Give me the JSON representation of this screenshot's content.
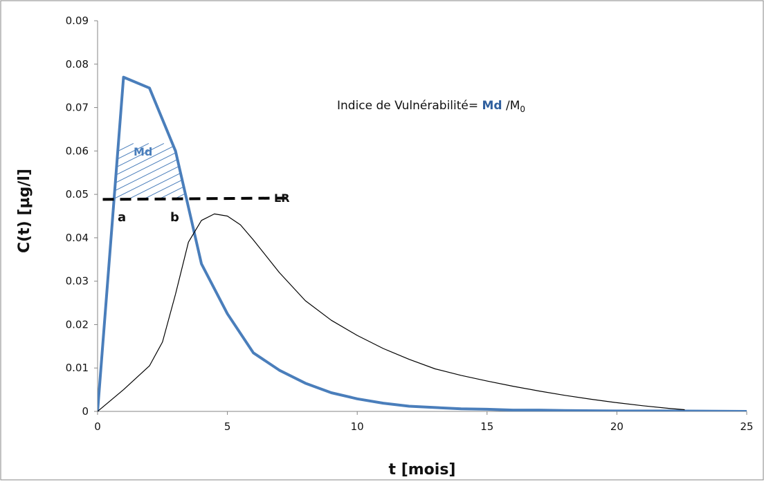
{
  "chart_data": {
    "type": "line",
    "xlabel": "t [mois]",
    "ylabel": "C(t) [µg/l]",
    "xlim": [
      0,
      25
    ],
    "ylim": [
      0,
      0.09
    ],
    "x_ticks": [
      "0",
      "5",
      "10",
      "15",
      "20",
      "25"
    ],
    "y_ticks": [
      "0",
      "0.01",
      "0.02",
      "0.03",
      "0.04",
      "0.05",
      "0.06",
      "0.07",
      "0.08",
      "0.09"
    ],
    "grid": false,
    "legend": "none",
    "series": [
      {
        "color": "#4a7ebb",
        "x": [
          0,
          1,
          2,
          3,
          4,
          5,
          6,
          7,
          8,
          9,
          10,
          11,
          12,
          13,
          14,
          15,
          16,
          17,
          18,
          20,
          22,
          25
        ],
        "y": [
          0,
          0.077,
          0.0745,
          0.06,
          0.034,
          0.0225,
          0.0135,
          0.0095,
          0.0065,
          0.0043,
          0.0029,
          0.0019,
          0.0012,
          0.0009,
          0.0006,
          0.0005,
          0.0003,
          0.0003,
          0.0002,
          0.0001,
          0.0001,
          0
        ]
      },
      {
        "color": "#000000",
        "x": [
          0,
          1,
          2,
          2.5,
          3,
          3.5,
          4,
          4.5,
          5,
          5.5,
          6,
          7,
          8,
          9,
          10,
          11,
          12,
          13,
          14,
          15,
          16,
          17,
          18,
          19,
          20,
          21,
          22,
          22.6
        ],
        "y": [
          0,
          0.005,
          0.0105,
          0.016,
          0.027,
          0.039,
          0.044,
          0.0455,
          0.045,
          0.043,
          0.0395,
          0.032,
          0.0255,
          0.021,
          0.0175,
          0.0145,
          0.012,
          0.0098,
          0.0083,
          0.007,
          0.0058,
          0.0047,
          0.0037,
          0.0028,
          0.002,
          0.0013,
          0.0007,
          0.0004
        ]
      }
    ],
    "threshold": {
      "label": "LR",
      "y": 0.049,
      "x_start": 0.2,
      "x_end": 7.5,
      "style": "dashed",
      "color": "#000000"
    },
    "annotations": {
      "area_label": "Md",
      "point_a": "a",
      "point_b": "b",
      "formula_prefix": "Indice de Vulnérabilité= ",
      "formula_md": "Md",
      "formula_mid": " /M",
      "formula_sub": "0"
    }
  }
}
